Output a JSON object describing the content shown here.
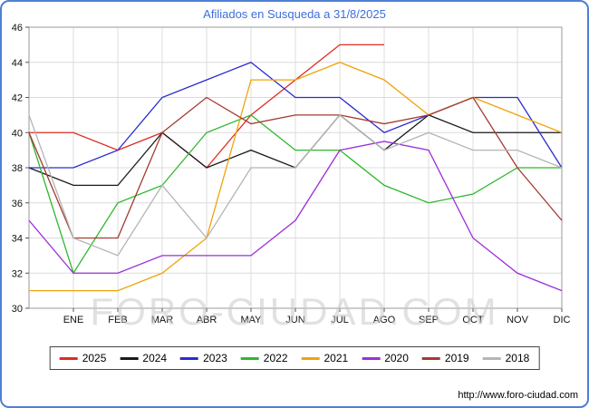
{
  "watermark": "FORO-CIUDAD.COM",
  "footer": {
    "url": "http://www.foro-ciudad.com"
  },
  "chart_data": {
    "type": "line",
    "title": "Afiliados en Susqueda a 31/8/2025",
    "title_color": "#3d6edb",
    "categories": [
      "",
      "ENE",
      "FEB",
      "MAR",
      "ABR",
      "MAY",
      "JUN",
      "JUL",
      "AGO",
      "SEP",
      "OCT",
      "NOV",
      "DIC"
    ],
    "ylim": [
      30,
      46
    ],
    "yticks": [
      30,
      32,
      34,
      36,
      38,
      40,
      42,
      44,
      46
    ],
    "grid": true,
    "legend_position": "bottom",
    "series": [
      {
        "name": "2025",
        "color": "#dd2c23",
        "values": [
          40,
          40,
          39,
          40,
          38,
          41,
          43,
          45,
          45
        ]
      },
      {
        "name": "2024",
        "color": "#1a1a1a",
        "values": [
          38,
          37,
          37,
          40,
          38,
          39,
          38,
          41,
          39,
          41,
          40,
          40,
          40
        ]
      },
      {
        "name": "2023",
        "color": "#2b2bd0",
        "values": [
          38,
          38,
          39,
          42,
          43,
          44,
          42,
          42,
          40,
          41,
          42,
          42,
          38
        ]
      },
      {
        "name": "2022",
        "color": "#2eb82e",
        "values": [
          40,
          32,
          36,
          37,
          40,
          41,
          39,
          39,
          37,
          36,
          36.5,
          38,
          38
        ]
      },
      {
        "name": "2021",
        "color": "#f0a30a",
        "values": [
          31,
          31,
          31,
          32,
          34,
          43,
          43,
          44,
          43,
          41,
          42,
          41,
          40
        ]
      },
      {
        "name": "2020",
        "color": "#9b30d9",
        "values": [
          35,
          32,
          32,
          33,
          33,
          33,
          35,
          39,
          39.5,
          39,
          34,
          32,
          31
        ]
      },
      {
        "name": "2019",
        "color": "#a33b32",
        "values": [
          40,
          34,
          34,
          40,
          42,
          40.5,
          41,
          41,
          40.5,
          41,
          42,
          38,
          35
        ]
      },
      {
        "name": "2018",
        "color": "#b5b5b5",
        "values": [
          41,
          34,
          33,
          37,
          34,
          38,
          38,
          41,
          39,
          40,
          39,
          39,
          38
        ]
      }
    ]
  }
}
